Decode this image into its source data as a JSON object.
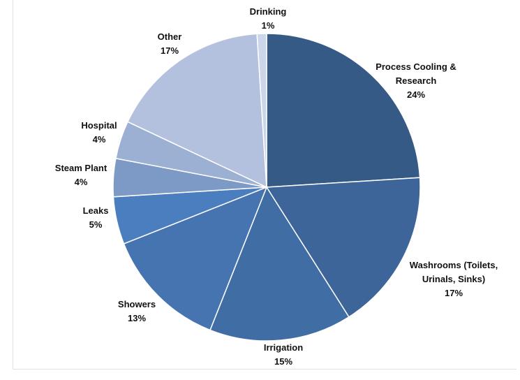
{
  "chart_data": {
    "type": "pie",
    "title": "",
    "slices": [
      {
        "label_lines": [
          "Process Cooling &",
          "Research"
        ],
        "value": 24,
        "pct_label": "24%",
        "color": "#355a86"
      },
      {
        "label_lines": [
          "Washrooms (Toilets,",
          "Urinals, Sinks)"
        ],
        "value": 17,
        "pct_label": "17%",
        "color": "#3d6599"
      },
      {
        "label_lines": [
          "Irrigation"
        ],
        "value": 15,
        "pct_label": "15%",
        "color": "#416da5"
      },
      {
        "label_lines": [
          "Showers"
        ],
        "value": 13,
        "pct_label": "13%",
        "color": "#4574b1"
      },
      {
        "label_lines": [
          "Leaks"
        ],
        "value": 5,
        "pct_label": "5%",
        "color": "#4a7ebf"
      },
      {
        "label_lines": [
          "Steam Plant"
        ],
        "value": 4,
        "pct_label": "4%",
        "color": "#7d9ac7"
      },
      {
        "label_lines": [
          "Hospital"
        ],
        "value": 4,
        "pct_label": "4%",
        "color": "#9cb0d3"
      },
      {
        "label_lines": [
          "Other"
        ],
        "value": 17,
        "pct_label": "17%",
        "color": "#b3c1de"
      },
      {
        "label_lines": [
          "Drinking"
        ],
        "value": 1,
        "pct_label": "1%",
        "color": "#ccd6ea"
      }
    ]
  }
}
